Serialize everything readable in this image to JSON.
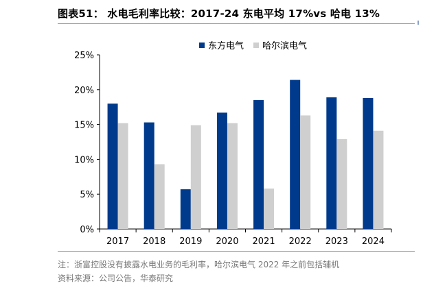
{
  "header": {
    "title": "图表51：  水电毛利率比较：2017-24 东电平均 17%vs 哈电 13%"
  },
  "notes": {
    "line1": "注：浙富控股没有披露水电业务的毛利率，哈尔滨电气 2022 年之前包括辅机",
    "line2": "资料来源：公司公告，华泰研究"
  },
  "colors": {
    "series1": "#003a8c",
    "series2": "#cfcfcf",
    "accent": "#8aa0c8"
  },
  "chart_data": {
    "type": "bar",
    "categories": [
      "2017",
      "2018",
      "2019",
      "2020",
      "2021",
      "2022",
      "2023",
      "2024"
    ],
    "series": [
      {
        "name": "东方电气",
        "values": [
          18.0,
          15.3,
          5.7,
          16.7,
          18.5,
          21.4,
          18.9,
          18.8
        ]
      },
      {
        "name": "哈尔滨电气",
        "values": [
          15.2,
          9.3,
          14.9,
          15.2,
          5.8,
          16.3,
          12.9,
          14.1
        ]
      }
    ],
    "ylim": [
      0,
      25
    ],
    "yticks": [
      "0%",
      "5%",
      "10%",
      "15%",
      "20%",
      "25%"
    ],
    "grid": false,
    "legend_position": "top-center"
  }
}
